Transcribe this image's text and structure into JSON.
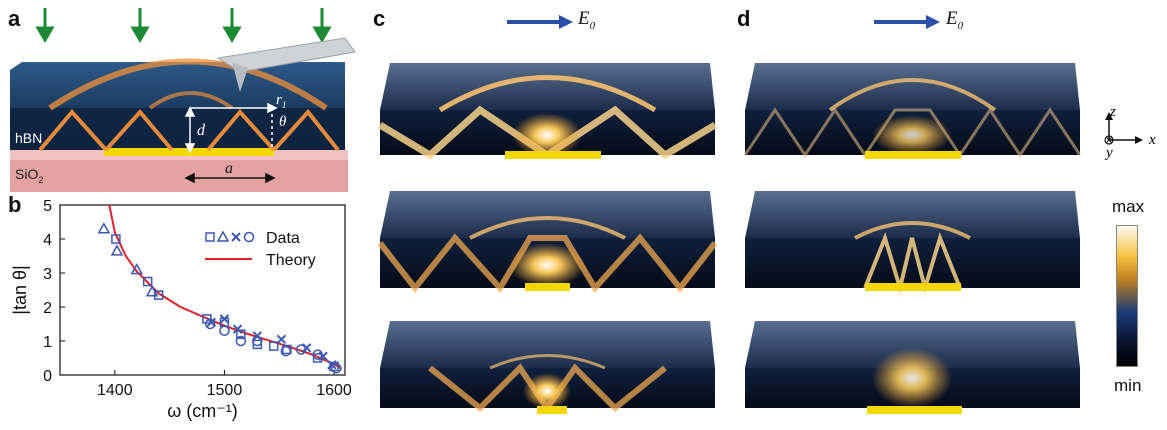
{
  "panels": {
    "a": {
      "letter": "a",
      "labels": {
        "hBN": "hBN",
        "SiO2_main": "SiO",
        "SiO2_sub": "2",
        "r": "r",
        "r_sub": "1",
        "theta": "θ",
        "d": "d",
        "a": "a"
      }
    },
    "b": {
      "letter": "b"
    },
    "c": {
      "letter": "c",
      "field_label": "E",
      "field_sub": "0"
    },
    "d": {
      "letter": "d",
      "field_label": "E",
      "field_sub": "0"
    }
  },
  "axes_glyph": {
    "z": "z",
    "x": "x",
    "y": "y"
  },
  "colorbar": {
    "max_label": "max",
    "min_label": "min"
  },
  "colors": {
    "arrow_green": "#1c8a32",
    "field_arrow_blue": "#2a4fa8",
    "data_blue": "#3a58b0",
    "theory_red": "#e0202a",
    "gold": "#f2d700",
    "hbn_dark": "#0e2340"
  },
  "chart_data": {
    "type": "scatter",
    "xlabel": "ω (cm⁻¹)",
    "ylabel": "|tan θ|",
    "xlim": [
      1350,
      1610
    ],
    "ylim": [
      0,
      5
    ],
    "xticks": [
      1400,
      1500,
      1600
    ],
    "yticks": [
      0,
      1,
      2,
      3,
      4,
      5
    ],
    "legend": {
      "title": "Data",
      "position": "top-right",
      "theory_label": "Theory"
    },
    "series": [
      {
        "marker": "square",
        "points": [
          [
            1401,
            4.0
          ],
          [
            1430,
            2.75
          ],
          [
            1440,
            2.35
          ],
          [
            1484,
            1.65
          ],
          [
            1500,
            1.55
          ],
          [
            1515,
            1.2
          ],
          [
            1530,
            0.9
          ],
          [
            1545,
            0.85
          ],
          [
            1557,
            0.75
          ],
          [
            1585,
            0.5
          ],
          [
            1600,
            0.25
          ]
        ]
      },
      {
        "marker": "triangle",
        "points": [
          [
            1390,
            4.3
          ],
          [
            1402,
            3.65
          ],
          [
            1420,
            3.1
          ],
          [
            1434,
            2.45
          ]
        ]
      },
      {
        "marker": "x",
        "points": [
          [
            1488,
            1.55
          ],
          [
            1500,
            1.65
          ],
          [
            1512,
            1.35
          ],
          [
            1530,
            1.15
          ],
          [
            1552,
            1.05
          ],
          [
            1575,
            0.8
          ],
          [
            1590,
            0.55
          ],
          [
            1598,
            0.3
          ]
        ]
      },
      {
        "marker": "circle",
        "points": [
          [
            1487,
            1.5
          ],
          [
            1500,
            1.3
          ],
          [
            1515,
            1.0
          ],
          [
            1530,
            1.0
          ],
          [
            1556,
            0.7
          ],
          [
            1570,
            0.75
          ],
          [
            1585,
            0.6
          ],
          [
            1602,
            0.2
          ]
        ]
      }
    ],
    "theory": {
      "points": [
        [
          1395,
          5.0
        ],
        [
          1400,
          4.2
        ],
        [
          1410,
          3.5
        ],
        [
          1420,
          3.05
        ],
        [
          1440,
          2.4
        ],
        [
          1460,
          2.0
        ],
        [
          1480,
          1.72
        ],
        [
          1500,
          1.45
        ],
        [
          1520,
          1.22
        ],
        [
          1540,
          1.02
        ],
        [
          1560,
          0.82
        ],
        [
          1580,
          0.6
        ],
        [
          1600,
          0.32
        ],
        [
          1607,
          0.18
        ]
      ]
    }
  }
}
